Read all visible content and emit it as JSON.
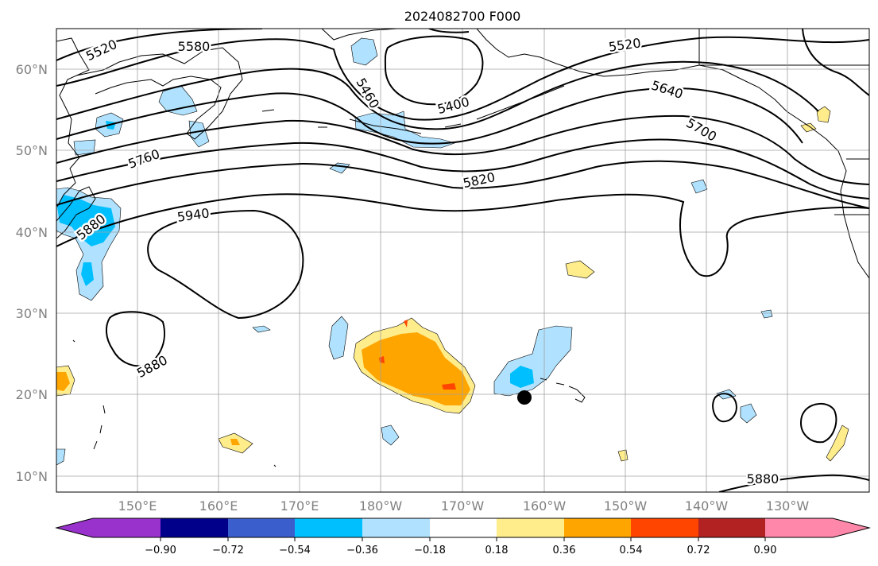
{
  "title": "2024082700 F000",
  "lat_labels": [
    "60°N",
    "50°N",
    "40°N",
    "30°N",
    "20°N",
    "10°N"
  ],
  "lon_labels": [
    "150°E",
    "160°E",
    "170°E",
    "180°W",
    "170°W",
    "160°W",
    "150°W",
    "140°W",
    "130°W"
  ],
  "contour_labels": [
    "5520",
    "5580",
    "5460",
    "5400",
    "5520",
    "5640",
    "5700",
    "5760",
    "5820",
    "5880",
    "5940",
    "5880",
    "5880"
  ],
  "colorbar": {
    "tick_labels": [
      "−0.90",
      "−0.72",
      "−0.54",
      "−0.36",
      "−0.18",
      "0.18",
      "0.36",
      "0.54",
      "0.72",
      "0.90"
    ],
    "colors": [
      "#9932cc",
      "#00008b",
      "#3a5fcd",
      "#00bfff",
      "#b0e2ff",
      "#ffffff",
      "#ffec8b",
      "#ffa500",
      "#ff4500",
      "#b22222",
      "#ff88aa"
    ]
  },
  "marker": {
    "label": "",
    "color": "#000000"
  }
}
